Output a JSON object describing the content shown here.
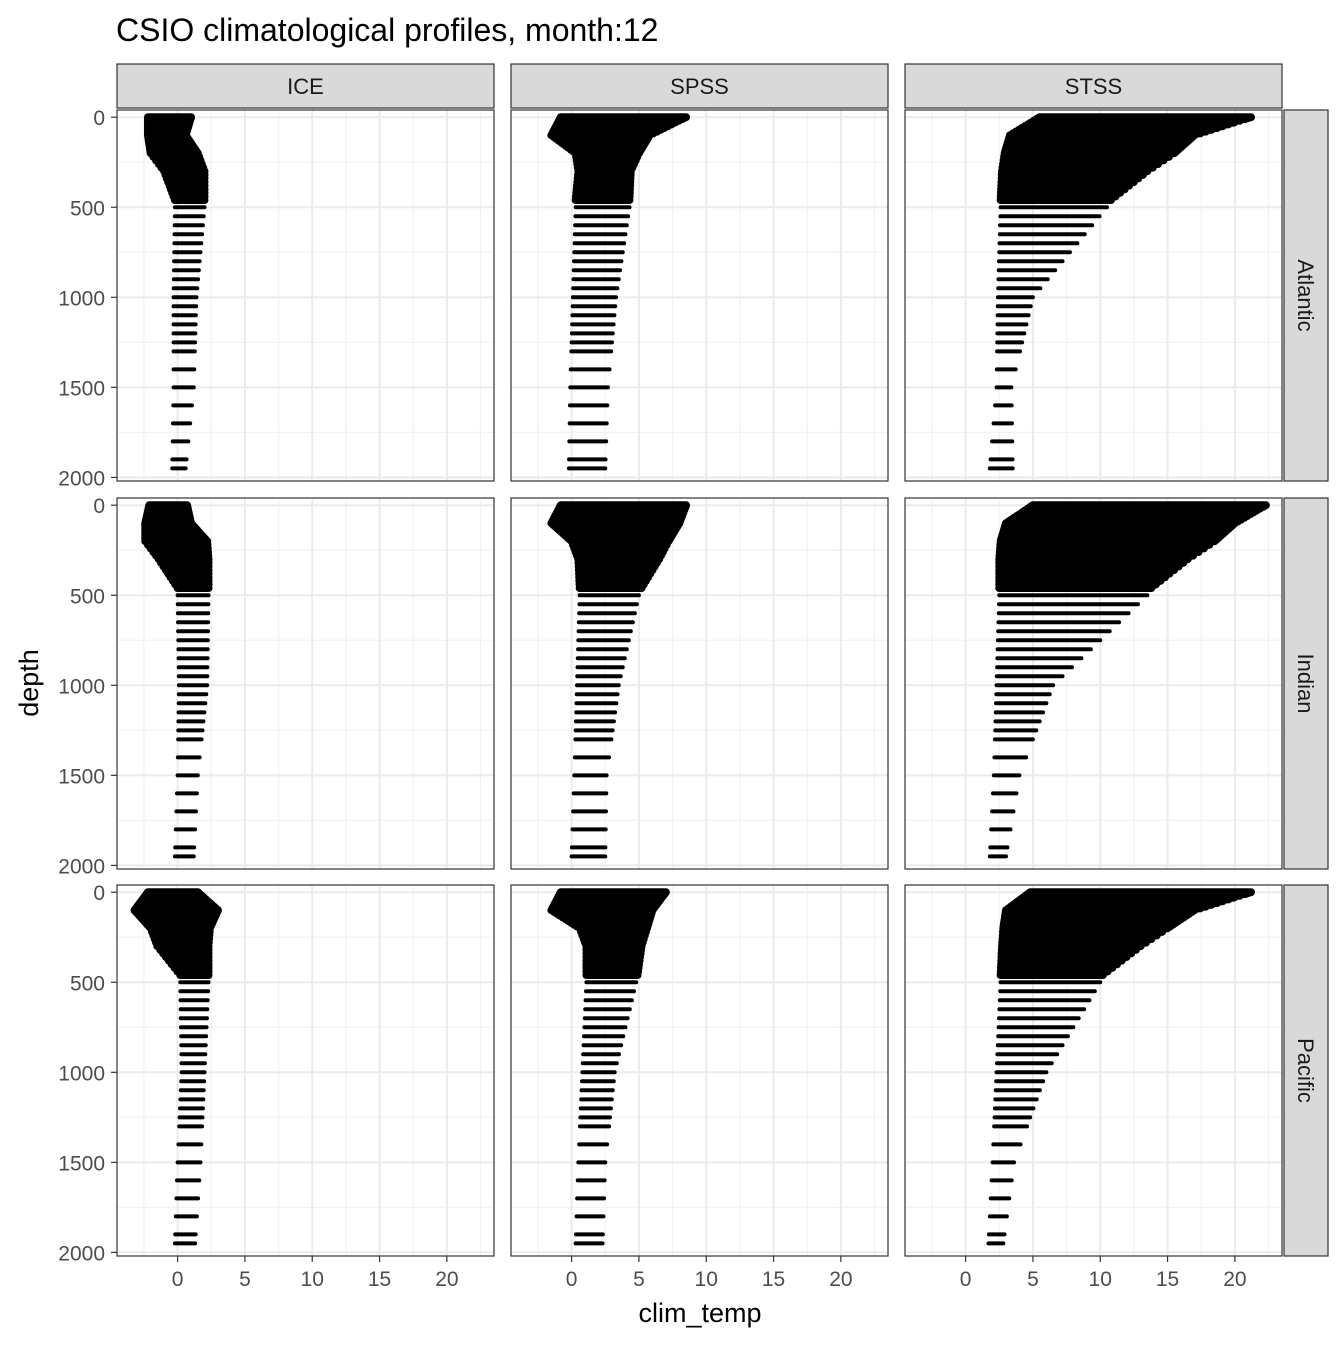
{
  "chart_data": {
    "type": "scatter",
    "title": "CSIO climatological profiles, month:12",
    "xlabel": "clim_temp",
    "ylabel": "depth",
    "facet_columns": [
      "ICE",
      "SPSS",
      "STSS"
    ],
    "facet_rows": [
      "Atlantic",
      "Indian",
      "Pacific"
    ],
    "xlim": [
      -4.5,
      23.5
    ],
    "ylim": [
      2020,
      -40
    ],
    "y_reversed": true,
    "x_ticks": [
      0,
      5,
      10,
      15,
      20
    ],
    "y_ticks": [
      0,
      500,
      1000,
      1500,
      2000
    ],
    "grid": true,
    "theme": "bw",
    "point_color": "#000000",
    "strip_fill": "#d9d9d9",
    "depth_levels": [
      0,
      5,
      10,
      20,
      30,
      40,
      50,
      60,
      70,
      80,
      90,
      100,
      110,
      120,
      130,
      140,
      150,
      160,
      170,
      180,
      190,
      200,
      220,
      240,
      260,
      280,
      300,
      320,
      340,
      360,
      380,
      400,
      420,
      440,
      460,
      500,
      550,
      600,
      650,
      700,
      750,
      800,
      850,
      900,
      950,
      1000,
      1050,
      1100,
      1150,
      1200,
      1250,
      1300,
      1400,
      1500,
      1600,
      1700,
      1800,
      1900,
      1950
    ],
    "panels": [
      {
        "row": "Atlantic",
        "col": "ICE",
        "profile": [
          {
            "depth": 0,
            "min": -2.2,
            "max": 1.0
          },
          {
            "depth": 100,
            "min": -2.2,
            "max": 0.6
          },
          {
            "depth": 200,
            "min": -2.0,
            "max": 1.5
          },
          {
            "depth": 300,
            "min": -1.0,
            "max": 2.0
          },
          {
            "depth": 460,
            "min": -0.2,
            "max": 2.0
          },
          {
            "depth": 500,
            "min": -0.2,
            "max": 2.0
          },
          {
            "depth": 1000,
            "min": -0.3,
            "max": 1.4
          },
          {
            "depth": 1500,
            "min": -0.3,
            "max": 1.2
          },
          {
            "depth": 1950,
            "min": -0.4,
            "max": 0.6
          }
        ]
      },
      {
        "row": "Atlantic",
        "col": "SPSS",
        "profile": [
          {
            "depth": 0,
            "min": -0.8,
            "max": 8.5
          },
          {
            "depth": 100,
            "min": -1.5,
            "max": 5.8
          },
          {
            "depth": 200,
            "min": 0.3,
            "max": 5.0
          },
          {
            "depth": 300,
            "min": 0.5,
            "max": 4.4
          },
          {
            "depth": 460,
            "min": 0.3,
            "max": 4.3
          },
          {
            "depth": 500,
            "min": 0.3,
            "max": 4.3
          },
          {
            "depth": 1000,
            "min": 0.1,
            "max": 3.3
          },
          {
            "depth": 1500,
            "min": -0.1,
            "max": 2.7
          },
          {
            "depth": 1950,
            "min": -0.2,
            "max": 2.5
          }
        ]
      },
      {
        "row": "Atlantic",
        "col": "STSS",
        "profile": [
          {
            "depth": 0,
            "min": 5.5,
            "max": 21.2
          },
          {
            "depth": 100,
            "min": 3.3,
            "max": 17.0
          },
          {
            "depth": 200,
            "min": 2.9,
            "max": 15.5
          },
          {
            "depth": 300,
            "min": 2.7,
            "max": 13.5
          },
          {
            "depth": 460,
            "min": 2.6,
            "max": 10.8
          },
          {
            "depth": 500,
            "min": 2.6,
            "max": 10.5
          },
          {
            "depth": 1000,
            "min": 2.4,
            "max": 5.0
          },
          {
            "depth": 1500,
            "min": 2.3,
            "max": 3.4
          },
          {
            "depth": 1950,
            "min": 1.8,
            "max": 3.5
          }
        ]
      },
      {
        "row": "Indian",
        "col": "ICE",
        "profile": [
          {
            "depth": 0,
            "min": -2.1,
            "max": 0.7
          },
          {
            "depth": 100,
            "min": -2.4,
            "max": 1.0
          },
          {
            "depth": 200,
            "min": -2.4,
            "max": 2.2
          },
          {
            "depth": 300,
            "min": -1.4,
            "max": 2.3
          },
          {
            "depth": 460,
            "min": 0.0,
            "max": 2.3
          },
          {
            "depth": 500,
            "min": 0.0,
            "max": 2.3
          },
          {
            "depth": 1000,
            "min": 0.1,
            "max": 2.2
          },
          {
            "depth": 1500,
            "min": 0.0,
            "max": 1.5
          },
          {
            "depth": 1950,
            "min": -0.2,
            "max": 1.2
          }
        ]
      },
      {
        "row": "Indian",
        "col": "SPSS",
        "profile": [
          {
            "depth": 0,
            "min": -0.8,
            "max": 8.5
          },
          {
            "depth": 100,
            "min": -1.5,
            "max": 8.0
          },
          {
            "depth": 200,
            "min": 0.0,
            "max": 7.2
          },
          {
            "depth": 300,
            "min": 0.5,
            "max": 6.5
          },
          {
            "depth": 460,
            "min": 0.6,
            "max": 5.2
          },
          {
            "depth": 500,
            "min": 0.6,
            "max": 5.0
          },
          {
            "depth": 1000,
            "min": 0.4,
            "max": 3.5
          },
          {
            "depth": 1500,
            "min": 0.2,
            "max": 2.6
          },
          {
            "depth": 1950,
            "min": 0.0,
            "max": 2.5
          }
        ]
      },
      {
        "row": "Indian",
        "col": "STSS",
        "profile": [
          {
            "depth": 0,
            "min": 5.0,
            "max": 22.3
          },
          {
            "depth": 100,
            "min": 3.0,
            "max": 20.0
          },
          {
            "depth": 200,
            "min": 2.6,
            "max": 18.5
          },
          {
            "depth": 300,
            "min": 2.5,
            "max": 16.5
          },
          {
            "depth": 460,
            "min": 2.5,
            "max": 13.8
          },
          {
            "depth": 500,
            "min": 2.5,
            "max": 13.5
          },
          {
            "depth": 1000,
            "min": 2.3,
            "max": 6.5
          },
          {
            "depth": 1500,
            "min": 2.1,
            "max": 4.0
          },
          {
            "depth": 1950,
            "min": 1.8,
            "max": 3.0
          }
        ]
      },
      {
        "row": "Pacific",
        "col": "ICE",
        "profile": [
          {
            "depth": 0,
            "min": -2.2,
            "max": 1.5
          },
          {
            "depth": 100,
            "min": -3.2,
            "max": 3.0
          },
          {
            "depth": 200,
            "min": -2.0,
            "max": 2.4
          },
          {
            "depth": 300,
            "min": -1.5,
            "max": 2.3
          },
          {
            "depth": 460,
            "min": 0.2,
            "max": 2.3
          },
          {
            "depth": 500,
            "min": 0.2,
            "max": 2.3
          },
          {
            "depth": 1000,
            "min": 0.3,
            "max": 2.0
          },
          {
            "depth": 1500,
            "min": 0.0,
            "max": 1.7
          },
          {
            "depth": 1950,
            "min": -0.2,
            "max": 1.3
          }
        ]
      },
      {
        "row": "Pacific",
        "col": "SPSS",
        "profile": [
          {
            "depth": 0,
            "min": -0.8,
            "max": 7.0
          },
          {
            "depth": 100,
            "min": -1.5,
            "max": 6.0
          },
          {
            "depth": 200,
            "min": 0.6,
            "max": 5.6
          },
          {
            "depth": 300,
            "min": 1.1,
            "max": 5.2
          },
          {
            "depth": 460,
            "min": 1.1,
            "max": 4.9
          },
          {
            "depth": 500,
            "min": 1.1,
            "max": 4.8
          },
          {
            "depth": 1000,
            "min": 0.8,
            "max": 3.2
          },
          {
            "depth": 1500,
            "min": 0.5,
            "max": 2.5
          },
          {
            "depth": 1950,
            "min": 0.3,
            "max": 2.3
          }
        ]
      },
      {
        "row": "Pacific",
        "col": "STSS",
        "profile": [
          {
            "depth": 0,
            "min": 4.8,
            "max": 21.2
          },
          {
            "depth": 100,
            "min": 3.0,
            "max": 17.0
          },
          {
            "depth": 200,
            "min": 2.8,
            "max": 15.0
          },
          {
            "depth": 300,
            "min": 2.7,
            "max": 13.0
          },
          {
            "depth": 460,
            "min": 2.6,
            "max": 10.2
          },
          {
            "depth": 500,
            "min": 2.6,
            "max": 10.0
          },
          {
            "depth": 1000,
            "min": 2.3,
            "max": 6.0
          },
          {
            "depth": 1500,
            "min": 2.0,
            "max": 3.6
          },
          {
            "depth": 1950,
            "min": 1.7,
            "max": 2.8
          }
        ]
      }
    ]
  }
}
